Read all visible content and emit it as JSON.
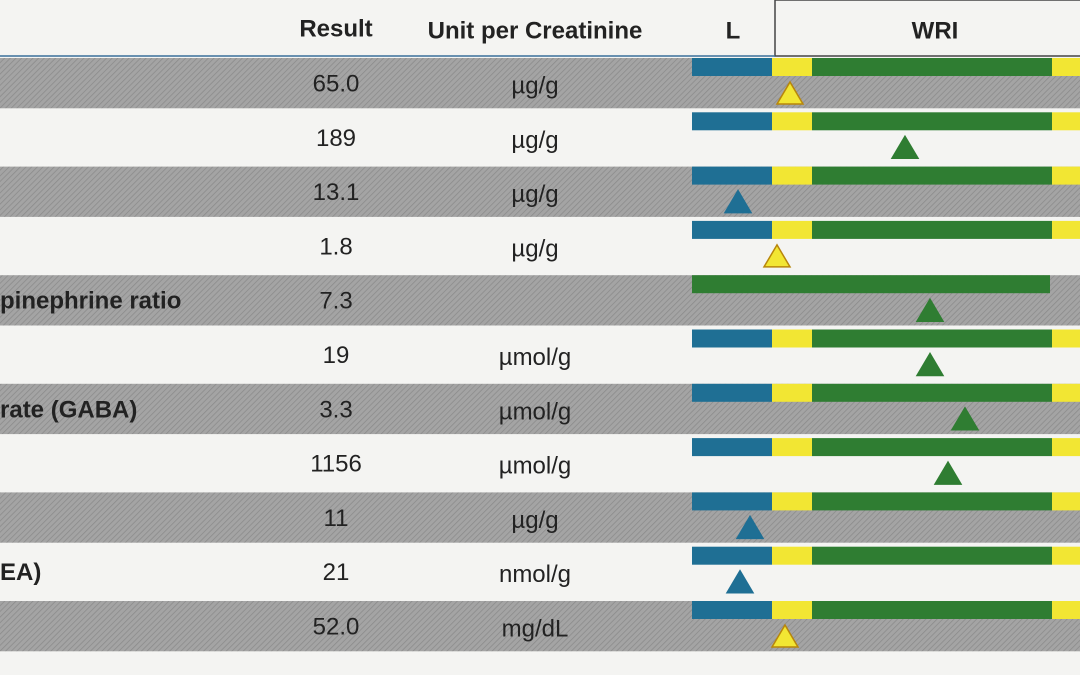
{
  "header": {
    "result": "Result",
    "unit": "Unit per Creatinine",
    "low": "L",
    "range": "WRI"
  },
  "rows": [
    {
      "result": "65.0",
      "unit": "µg/g"
    },
    {
      "result": "189",
      "unit": "µg/g"
    },
    {
      "result": "13.1",
      "unit": "µg/g"
    },
    {
      "result": "1.8",
      "unit": "µg/g"
    },
    {
      "label": "pinephrine ratio",
      "result": "7.3"
    },
    {
      "result": "19",
      "unit": "µmol/g"
    },
    {
      "label": "rate (GABA)",
      "result": "3.3",
      "unit": "µmol/g"
    },
    {
      "result": "1156",
      "unit": "µmol/g"
    },
    {
      "result": "11",
      "unit": "µg/g"
    },
    {
      "label": "EA)",
      "result": "21",
      "unit": "nmol/g"
    },
    {
      "result": "52.0",
      "unit": "mg/dL"
    }
  ]
}
